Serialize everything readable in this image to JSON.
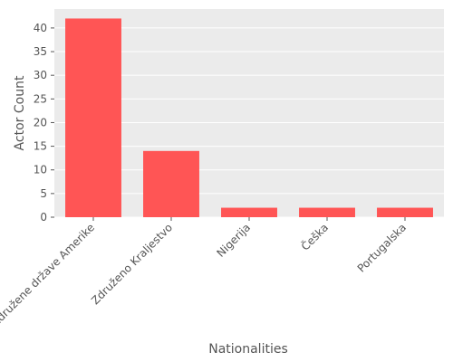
{
  "chart_data": {
    "type": "bar",
    "categories": [
      "Združene države Amerike",
      "Združeno Kraljestvo",
      "Nigerija",
      "Češka",
      "Portugalska"
    ],
    "values": [
      42,
      14,
      2,
      2,
      2
    ],
    "xlabel": "Nationalities",
    "ylabel": "Actor Count",
    "ylim": [
      0,
      44
    ],
    "yticks": [
      0,
      5,
      10,
      15,
      20,
      25,
      30,
      35,
      40
    ],
    "grid": true,
    "bar_color": "#ff5555",
    "background_color": "#ebebeb",
    "grid_color": "#ffffff"
  }
}
